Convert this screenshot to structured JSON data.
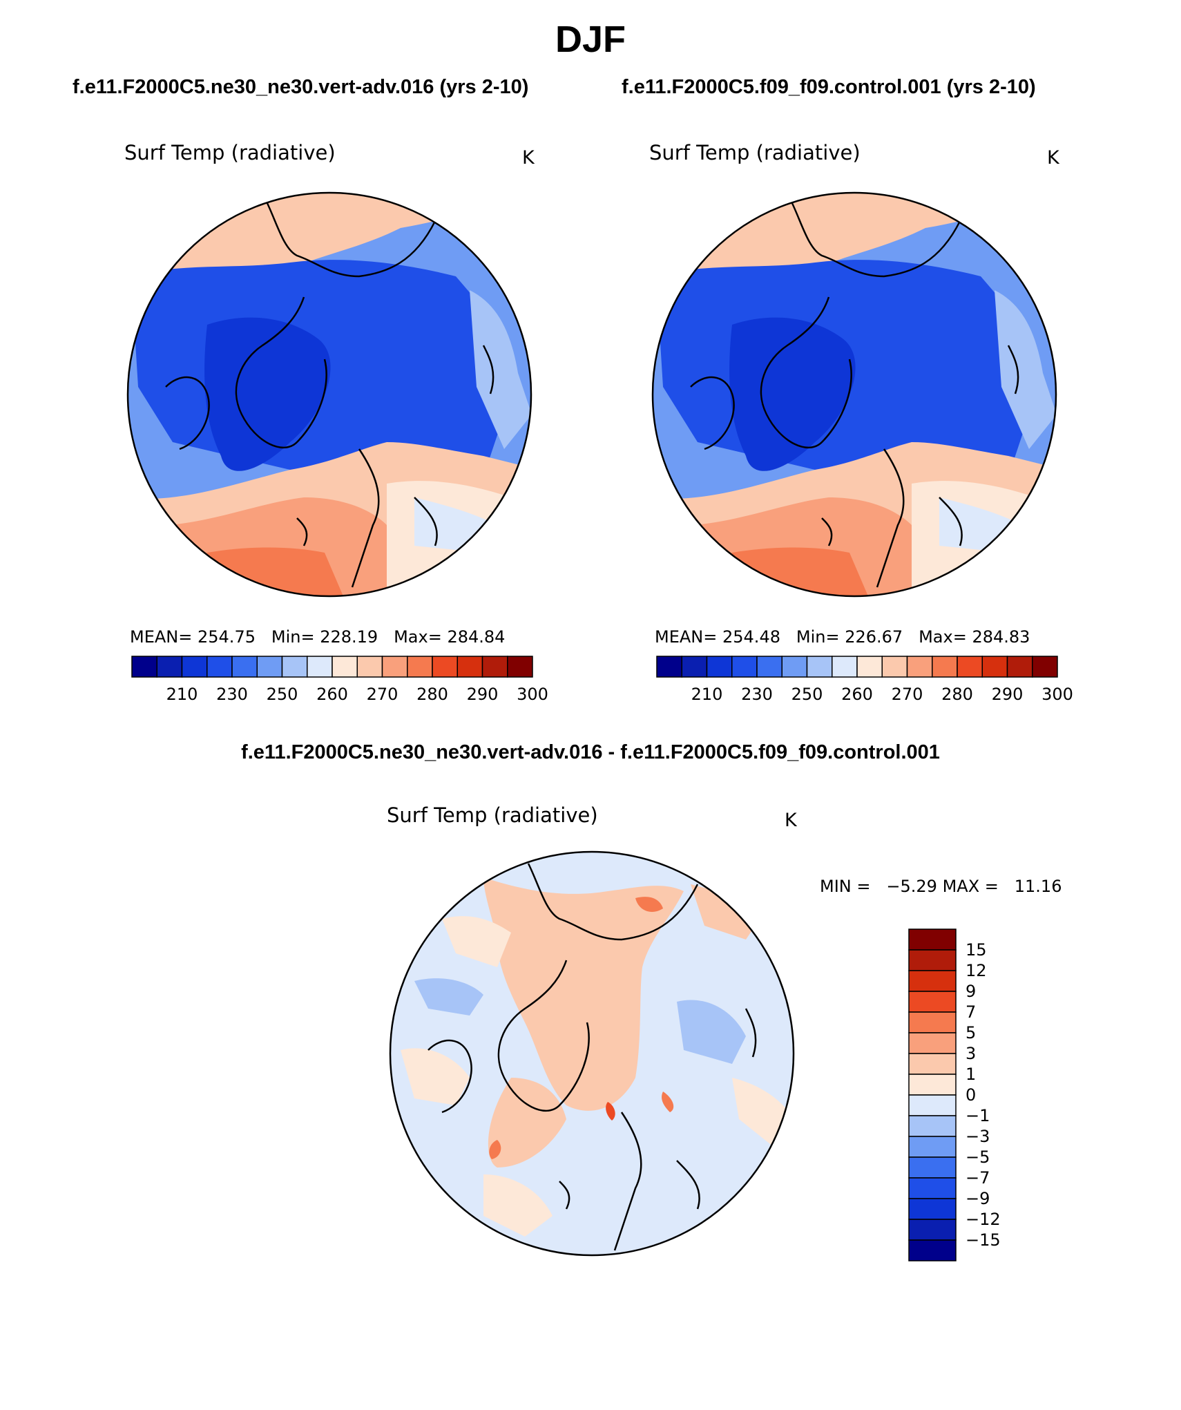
{
  "title": "DJF",
  "panels": [
    {
      "run_title": "f.e11.F2000C5.ne30_ne30.vert-adv.016 (yrs 2-10)",
      "variable": "Surf Temp (radiative)",
      "units": "K",
      "stats": {
        "mean_label": "MEAN=",
        "mean": "254.75",
        "min_label": "Min=",
        "min": "228.19",
        "max_label": "Max=",
        "max": "284.84"
      }
    },
    {
      "run_title": "f.e11.F2000C5.f09_f09.control.001 (yrs 2-10)",
      "variable": "Surf Temp (radiative)",
      "units": "K",
      "stats": {
        "mean_label": "MEAN=",
        "mean": "254.48",
        "min_label": "Min=",
        "min": "226.67",
        "max_label": "Max=",
        "max": "284.83"
      }
    }
  ],
  "abs_colorbar": {
    "colors": [
      "#00008b",
      "#0a1fb0",
      "#0e36d6",
      "#1f4fe8",
      "#3a6ff0",
      "#6f9cf4",
      "#a7c4f7",
      "#dde9fb",
      "#fde8d8",
      "#fbc9ad",
      "#f9a07c",
      "#f57a4f",
      "#ec4a23",
      "#d6300e",
      "#b01c0a",
      "#800000"
    ],
    "labels": [
      "210",
      "230",
      "250",
      "260",
      "270",
      "280",
      "290",
      "300"
    ]
  },
  "diff_panel": {
    "title": "f.e11.F2000C5.ne30_ne30.vert-adv.016 - f.e11.F2000C5.f09_f09.control.001",
    "variable": "Surf Temp (radiative)",
    "units": "K",
    "min_label": "MIN =",
    "min": "−5.29",
    "max_label": "MAX =",
    "max": "11.16"
  },
  "diff_colorbar": {
    "colors": [
      "#800000",
      "#b01c0a",
      "#d6300e",
      "#ec4a23",
      "#f57a4f",
      "#f9a07c",
      "#fbc9ad",
      "#fde8d8",
      "#dde9fb",
      "#a7c4f7",
      "#6f9cf4",
      "#3a6ff0",
      "#1f4fe8",
      "#0e36d6",
      "#0a1fb0",
      "#00008b"
    ],
    "labels": [
      "15",
      "12",
      "9",
      "7",
      "5",
      "3",
      "1",
      "0",
      "−1",
      "−3",
      "−5",
      "−7",
      "−9",
      "−12",
      "−15"
    ]
  },
  "map_colors": {
    "deep_blue": "#0e36d6",
    "blue": "#1f4fe8",
    "mid_blue": "#3a6ff0",
    "light_blue": "#6f9cf4",
    "pale_blue": "#a7c4f7",
    "ice_blue": "#dde9fb",
    "cream": "#fde8d8",
    "peach": "#fbc9ad",
    "salmon": "#f9a07c",
    "orange": "#f57a4f",
    "coast": "#000000"
  }
}
